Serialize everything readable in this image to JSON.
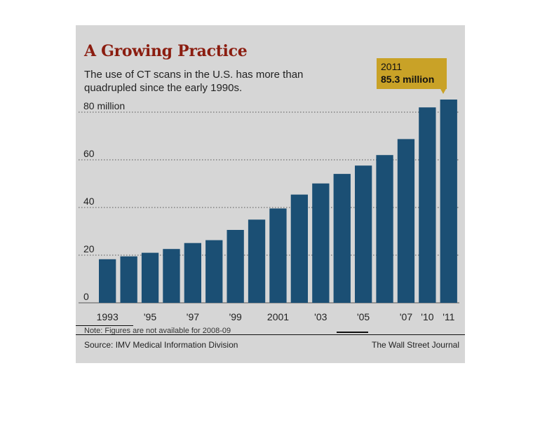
{
  "title": "A Growing Practice",
  "subtitle": "The use of CT scans in the U.S. has more than quadrupled since the early 1990s.",
  "note": "Note: Figures are not available for 2008-09",
  "source": "Source: IMV Medical Information Division",
  "credit": "The Wall Street Journal",
  "callout": {
    "year": "2011",
    "value": "85.3 million"
  },
  "colors": {
    "bar": "#1b4f74",
    "title": "#8b1d10",
    "callout": "#c9a227",
    "panel": "#d6d6d6"
  },
  "chart_data": {
    "type": "bar",
    "title": "A Growing Practice",
    "subtitle": "The use of CT scans in the U.S. has more than quadrupled since the early 1990s.",
    "categories": [
      "1993",
      "1994",
      "1995",
      "1996",
      "1997",
      "1998",
      "1999",
      "2000",
      "2001",
      "2002",
      "2003",
      "2004",
      "2005",
      "2006",
      "2007",
      "2010",
      "2011"
    ],
    "values": [
      18.3,
      19.5,
      21.0,
      22.6,
      25.1,
      26.3,
      30.6,
      34.9,
      39.6,
      45.4,
      50.1,
      54.1,
      57.6,
      62.0,
      68.7,
      82.0,
      85.3
    ],
    "ytick_labels": [
      "0",
      "20",
      "40",
      "60",
      "80 million"
    ],
    "ytick_values": [
      0,
      20,
      40,
      60,
      80
    ],
    "xtick_labels": [
      "1993",
      "",
      "'95",
      "",
      "'97",
      "",
      "'99",
      "",
      "2001",
      "",
      "'03",
      "",
      "'05",
      "",
      "'07",
      "'10",
      "'11"
    ],
    "ylim": [
      0,
      90
    ],
    "unit": "million",
    "grid": "dotted horizontal",
    "legend": "none"
  }
}
